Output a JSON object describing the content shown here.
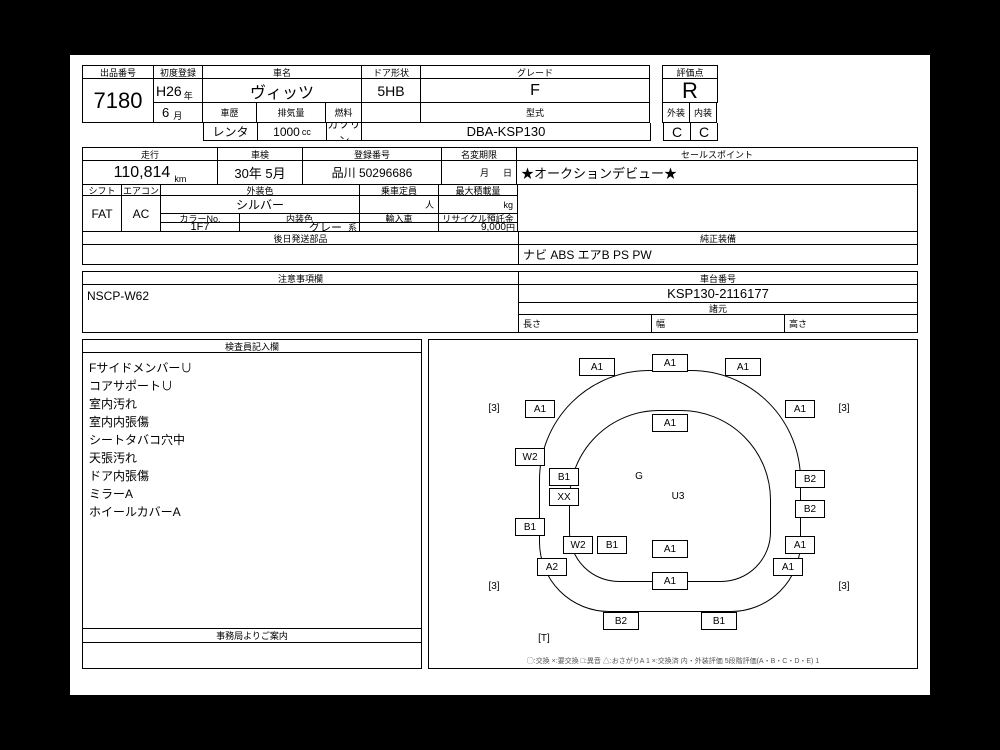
{
  "colors": {
    "bg": "#000000",
    "paper": "#ffffff",
    "line": "#000000",
    "text": "#000000"
  },
  "header": {
    "lot_label": "出品番号",
    "lot_no": "7180",
    "first_reg_label": "初度登録",
    "era": "H26",
    "era_suffix": "年",
    "month": "6",
    "month_suffix": "月",
    "name_label": "車名",
    "car_name": "ヴィッツ",
    "door_label": "ドア形状",
    "door": "5HB",
    "grade_label": "グレード",
    "grade": "F",
    "score_label": "評価点",
    "score": "R",
    "history_label": "車歴",
    "history": "レンタ",
    "disp_label": "排気量",
    "disp": "1000",
    "disp_unit": "cc",
    "fuel_label": "燃料",
    "fuel": "ガソリン",
    "model_label": "型式",
    "model": "DBA-KSP130",
    "ext_label": "外装",
    "ext_score": "C",
    "int_label": "内装",
    "int_score": "C"
  },
  "row2": {
    "odo_label": "走行",
    "odo": "110,814",
    "odo_unit": "km",
    "shaken_label": "車検",
    "shaken": "30年 5月",
    "regno_label": "登録番号",
    "regno": "品川 50296686",
    "expiry_label": "名変期限",
    "expiry_m": "月",
    "expiry_d": "日",
    "sales_label": "セールスポイント",
    "sales": "★オークションデビュー★"
  },
  "row3": {
    "shift_label": "シフト",
    "shift": "FAT",
    "ac_label": "エアコン",
    "ac": "AC",
    "extcolor_label": "外装色",
    "extcolor": "シルバー",
    "colorno_label": "カラーNo.",
    "colorno": "1F7",
    "intcolor_label": "内装色",
    "intcolor": "グレー",
    "intcolor_suffix": "系",
    "seats_label": "乗車定員",
    "seats_unit": "人",
    "import_label": "輸入車",
    "loadmax_label": "最大積載量",
    "loadmax_unit": "kg",
    "recycle_label": "リサイクル預託金",
    "recycle": "9,000",
    "recycle_unit": "円"
  },
  "row4": {
    "later_label": "後日発送部品",
    "equip_label": "純正装備",
    "equip": "ナビ ABS エアB PS PW"
  },
  "row5": {
    "notes_label": "注意事項欄",
    "notes_val": "NSCP-W62",
    "chassis_label": "車台番号",
    "chassis": "KSP130-2116177",
    "dims_label": "諸元",
    "len_label": "長さ",
    "wid_label": "幅",
    "hgt_label": "高さ"
  },
  "inspector": {
    "label": "検査員記入欄",
    "lines": [
      "Fサイドメンバー∪",
      "コアサポート∪",
      "室内汚れ",
      "室内内張傷",
      "シートタバコ穴中",
      "天張汚れ",
      "ドア内張傷",
      "ミラーA",
      "ホイールカバーA"
    ],
    "office_label": "事務局よりご案内"
  },
  "diagram": {
    "top": [
      "A1",
      "A1",
      "A1"
    ],
    "left": [
      "A1",
      "W2",
      "B1",
      "XX",
      "B1",
      "A2"
    ],
    "right": [
      "A1",
      "B2",
      "B2",
      "A1",
      "A1"
    ],
    "center": [
      "A1",
      "G",
      "U3",
      "A1",
      "A1"
    ],
    "bottom_left": [
      "W2",
      "B1"
    ],
    "bottom": [
      "B2",
      "B1"
    ],
    "tires": [
      "[3]",
      "[3]",
      "[3]",
      "[3]"
    ],
    "tail": "[T]",
    "legend": "◯:交換 ×:要交換 □:異音 △:おさがりA 1 ×:交換済 内・外装評価 5段階評価(A・B・C・D・E) 1"
  }
}
